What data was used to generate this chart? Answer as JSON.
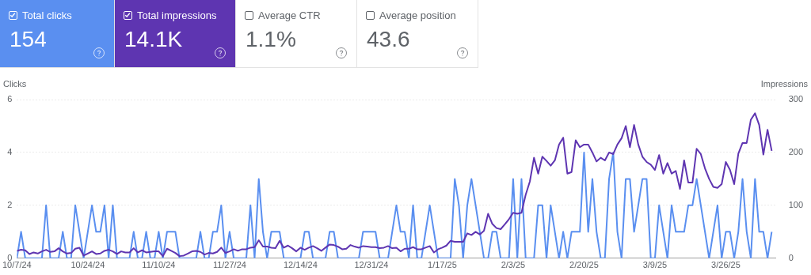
{
  "chart_data": [
    {
      "type": "other",
      "annotations": [
        "Total clicks",
        "154",
        "Total impressions",
        "14.1K",
        "Average CTR",
        "1.1%",
        "Average position",
        "43.6"
      ]
    },
    {
      "type": "line",
      "ylabel": "Clicks",
      "y2label": "Impressions",
      "x": [
        "2024-10-07",
        "2024-10-08",
        "2024-10-09",
        "2024-10-10",
        "2024-10-11",
        "2024-10-12",
        "2024-10-13",
        "2024-10-14",
        "2024-10-15",
        "2024-10-16",
        "2024-10-17",
        "2024-10-18",
        "2024-10-19",
        "2024-10-20",
        "2024-10-21",
        "2024-10-22",
        "2024-10-23",
        "2024-10-24",
        "2024-10-25",
        "2024-10-26",
        "2024-10-27",
        "2024-10-28",
        "2024-10-29",
        "2024-10-30",
        "2024-10-31",
        "2024-11-01",
        "2024-11-02",
        "2024-11-03",
        "2024-11-04",
        "2024-11-05",
        "2024-11-06",
        "2024-11-07",
        "2024-11-08",
        "2024-11-09",
        "2024-11-10",
        "2024-11-11",
        "2024-11-12",
        "2024-11-13",
        "2024-11-14",
        "2024-11-15",
        "2024-11-16",
        "2024-11-17",
        "2024-11-18",
        "2024-11-19",
        "2024-11-20",
        "2024-11-21",
        "2024-11-22",
        "2024-11-23",
        "2024-11-24",
        "2024-11-25",
        "2024-11-26",
        "2024-11-27",
        "2024-11-28",
        "2024-11-29",
        "2024-11-30",
        "2024-12-01",
        "2024-12-02",
        "2024-12-03",
        "2024-12-04",
        "2024-12-05",
        "2024-12-06",
        "2024-12-07",
        "2024-12-08",
        "2024-12-09",
        "2024-12-10",
        "2024-12-11",
        "2024-12-12",
        "2024-12-13",
        "2024-12-14",
        "2024-12-15",
        "2024-12-16",
        "2024-12-17",
        "2024-12-18",
        "2024-12-19",
        "2024-12-20",
        "2024-12-21",
        "2024-12-22",
        "2024-12-23",
        "2024-12-24",
        "2024-12-25",
        "2024-12-26",
        "2024-12-27",
        "2024-12-28",
        "2024-12-29",
        "2024-12-30",
        "2024-12-31",
        "2025-01-01",
        "2025-01-02",
        "2025-01-03",
        "2025-01-04",
        "2025-01-05",
        "2025-01-06",
        "2025-01-07",
        "2025-01-08",
        "2025-01-09",
        "2025-01-10",
        "2025-01-11",
        "2025-01-12",
        "2025-01-13",
        "2025-01-14",
        "2025-01-15",
        "2025-01-16",
        "2025-01-17",
        "2025-01-18",
        "2025-01-19",
        "2025-01-20",
        "2025-01-21",
        "2025-01-22",
        "2025-01-23",
        "2025-01-24",
        "2025-01-25",
        "2025-01-26",
        "2025-01-27",
        "2025-01-28",
        "2025-01-29",
        "2025-01-30",
        "2025-01-31",
        "2025-02-01",
        "2025-02-02",
        "2025-02-03",
        "2025-02-04",
        "2025-02-05",
        "2025-02-06",
        "2025-02-07",
        "2025-02-08",
        "2025-02-09",
        "2025-02-10",
        "2025-02-11",
        "2025-02-12",
        "2025-02-13",
        "2025-02-14",
        "2025-02-15",
        "2025-02-16",
        "2025-02-17",
        "2025-02-18",
        "2025-02-19",
        "2025-02-20",
        "2025-02-21",
        "2025-02-22",
        "2025-02-23",
        "2025-02-24",
        "2025-02-25",
        "2025-02-26",
        "2025-02-27",
        "2025-02-28",
        "2025-03-01",
        "2025-03-02",
        "2025-03-03",
        "2025-03-04",
        "2025-03-05",
        "2025-03-06",
        "2025-03-07",
        "2025-03-08",
        "2025-03-09",
        "2025-03-10",
        "2025-03-11",
        "2025-03-12",
        "2025-03-13",
        "2025-03-14",
        "2025-03-15",
        "2025-03-16",
        "2025-03-17",
        "2025-03-18",
        "2025-03-19",
        "2025-03-20",
        "2025-03-21",
        "2025-03-22",
        "2025-03-23",
        "2025-03-24",
        "2025-03-25",
        "2025-03-26",
        "2025-03-27",
        "2025-03-28",
        "2025-03-29",
        "2025-03-30",
        "2025-03-31",
        "2025-04-01",
        "2025-04-02",
        "2025-04-03",
        "2025-04-04",
        "2025-04-05",
        "2025-04-06"
      ],
      "series": [
        {
          "color": "#5a8ff0",
          "values": [
            0,
            1,
            0,
            0,
            0,
            0,
            0,
            2,
            0,
            0,
            0,
            1,
            0,
            0,
            2,
            1,
            0,
            1,
            2,
            1,
            1,
            2,
            0,
            2,
            0,
            0,
            0,
            0,
            1,
            0,
            0,
            1,
            0,
            0,
            1,
            0,
            1,
            1,
            1,
            0,
            0,
            0,
            0,
            0,
            1,
            0,
            0,
            1,
            1,
            2,
            0,
            1,
            0,
            0,
            0,
            0,
            2,
            0,
            3,
            1,
            0,
            1,
            1,
            1,
            0,
            0,
            0,
            0,
            0,
            1,
            1,
            0,
            0,
            0,
            0,
            1,
            1,
            0,
            0,
            0,
            0,
            0,
            0,
            1,
            1,
            1,
            1,
            0,
            0,
            0,
            1,
            2,
            1,
            1,
            0,
            2,
            0,
            0,
            1,
            2,
            1,
            0,
            0,
            0,
            0,
            3,
            2,
            0,
            2,
            3,
            2,
            1,
            0,
            0,
            1,
            1,
            0,
            0,
            0,
            3,
            0,
            3,
            0,
            0,
            0,
            2,
            2,
            0,
            2,
            1,
            0,
            1,
            0,
            1,
            1,
            1,
            4,
            1,
            3,
            1,
            0,
            0,
            3,
            4,
            1,
            0,
            3,
            3,
            1,
            2,
            3,
            3,
            0,
            0,
            2,
            1,
            0,
            2,
            1,
            1,
            1,
            2,
            2,
            3,
            2,
            1,
            0,
            1,
            2,
            0,
            1,
            1,
            0,
            1,
            3,
            1,
            0,
            3,
            1,
            1,
            0,
            1
          ]
        },
        {
          "color": "#5e35b1",
          "axis": "y2",
          "values": [
            14,
            16,
            15,
            8,
            11,
            9,
            13,
            16,
            12,
            13,
            19,
            13,
            9,
            10,
            18,
            20,
            5,
            9,
            13,
            8,
            9,
            14,
            16,
            13,
            8,
            13,
            11,
            11,
            19,
            11,
            15,
            11,
            12,
            13,
            13,
            4,
            18,
            14,
            10,
            4,
            5,
            9,
            13,
            14,
            12,
            7,
            10,
            9,
            12,
            20,
            10,
            13,
            17,
            14,
            17,
            17,
            20,
            21,
            34,
            22,
            22,
            20,
            19,
            33,
            20,
            24,
            19,
            13,
            20,
            16,
            20,
            23,
            19,
            14,
            20,
            26,
            25,
            22,
            17,
            18,
            25,
            22,
            20,
            23,
            22,
            21,
            21,
            19,
            20,
            23,
            19,
            20,
            13,
            18,
            18,
            21,
            17,
            17,
            20,
            23,
            11,
            17,
            20,
            24,
            33,
            31,
            31,
            31,
            47,
            44,
            50,
            45,
            52,
            84,
            65,
            57,
            55,
            64,
            74,
            86,
            84,
            86,
            120,
            145,
            190,
            160,
            192,
            184,
            175,
            185,
            215,
            228,
            160,
            163,
            223,
            210,
            215,
            215,
            200,
            183,
            190,
            185,
            200,
            197,
            215,
            227,
            250,
            210,
            252,
            215,
            192,
            182,
            177,
            167,
            195,
            160,
            180,
            160,
            165,
            131,
            185,
            143,
            143,
            207,
            197,
            170,
            150,
            135,
            133,
            140,
            182,
            167,
            140,
            198,
            218,
            218,
            262,
            274,
            252,
            196,
            243,
            203
          ]
        }
      ],
      "xlim": [
        "2024-10-07",
        "2025-04-07"
      ],
      "xticks": [
        {
          "value": "2024-10-07",
          "label": "10/7/24"
        },
        {
          "value": "2024-10-24",
          "label": "10/24/24"
        },
        {
          "value": "2024-11-10",
          "label": "11/10/24"
        },
        {
          "value": "2024-11-27",
          "label": "11/27/24"
        },
        {
          "value": "2024-12-14",
          "label": "12/14/24"
        },
        {
          "value": "2024-12-31",
          "label": "12/31/24"
        },
        {
          "value": "2025-01-17",
          "label": "1/17/25"
        },
        {
          "value": "2025-02-03",
          "label": "2/3/25"
        },
        {
          "value": "2025-02-20",
          "label": "2/20/25"
        },
        {
          "value": "2025-03-09",
          "label": "3/9/25"
        },
        {
          "value": "2025-03-26",
          "label": "3/26/25"
        }
      ],
      "ylim": [
        0,
        6
      ],
      "yticks": [
        0,
        2,
        4,
        6
      ],
      "y2lim": [
        0,
        300
      ],
      "y2ticks": [
        0,
        100,
        200,
        300
      ],
      "grid": "y",
      "legend": false,
      "marker": "none",
      "line_style": "solid"
    }
  ]
}
